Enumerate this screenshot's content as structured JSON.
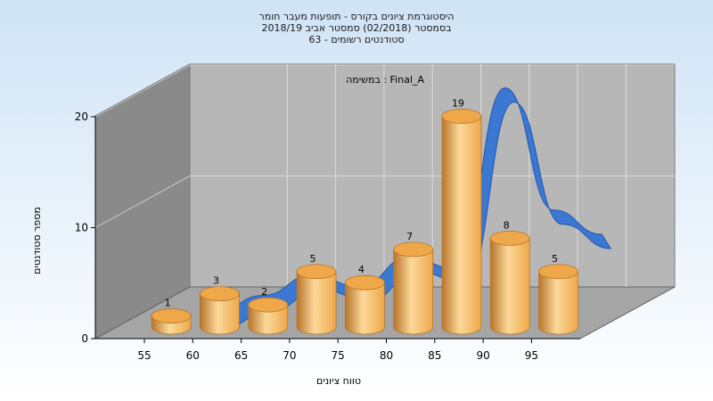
{
  "chart_data": {
    "type": "bar",
    "title_lines": [
      "היסטוגרמת ציונים בקורס - תופעות מעבר חומר",
      "בסמסטר  (02/2018)  סמסטר אביב 2018/19",
      "סטודנטים רשומים - 63"
    ],
    "inside_label": "במשימה : Final_A",
    "xlabel": "טווח ציונים",
    "ylabel": "מספר סטודנטים",
    "x_ticks": [
      "55",
      "60",
      "65",
      "70",
      "75",
      "80",
      "85",
      "90",
      "95"
    ],
    "y_ticks": [
      "0",
      "10",
      "20"
    ],
    "ylim": [
      0,
      20
    ],
    "categories": [
      "55-60",
      "60-65",
      "65-70",
      "70-75",
      "75-80",
      "80-85",
      "85-90",
      "90-95",
      "95-100"
    ],
    "values": [
      1,
      3,
      2,
      5,
      4,
      7,
      19,
      8,
      5
    ],
    "curve_values": [
      0.2,
      1.8,
      3.6,
      2.6,
      5.2,
      4.2,
      20.5,
      9.5,
      7.3
    ],
    "grid": true,
    "colors": {
      "bar_light": "#fbd99a",
      "bar_mid": "#eea84a",
      "bar_dark": "#b8752a",
      "curve": "#3a78d4",
      "curve_dark": "#2458a8",
      "back_wall": "#b7b7b7",
      "side_wall": "#8a8a8a",
      "floor": "#a5a5a5"
    }
  }
}
